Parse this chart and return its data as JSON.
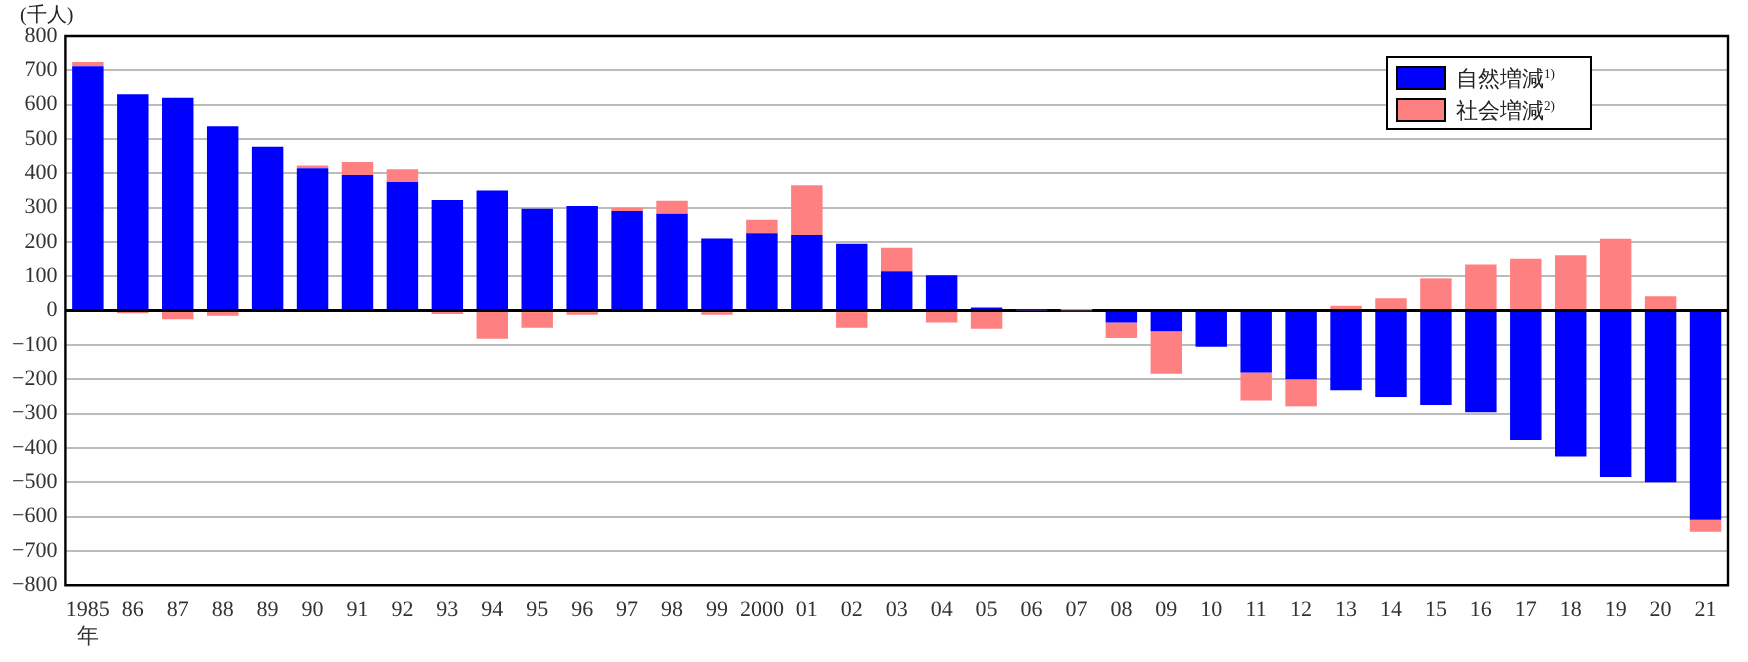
{
  "chart_data": {
    "type": "bar",
    "stacked": true,
    "ylabel": "(千人)",
    "categories": [
      "1985\n年",
      "86",
      "87",
      "88",
      "89",
      "90",
      "91",
      "92",
      "93",
      "94",
      "95",
      "96",
      "97",
      "98",
      "99",
      "2000",
      "01",
      "02",
      "03",
      "04",
      "05",
      "06",
      "07",
      "08",
      "09",
      "10",
      "11",
      "12",
      "13",
      "14",
      "15",
      "16",
      "17",
      "18",
      "19",
      "20",
      "21"
    ],
    "series": [
      {
        "name": "自然増減$^{1)}$",
        "color": "#0000ff",
        "values": [
          712,
          630,
          620,
          537,
          477,
          415,
          395,
          375,
          322,
          350,
          297,
          305,
          290,
          282,
          210,
          225,
          220,
          195,
          115,
          103,
          9,
          1,
          -1,
          -35,
          -60,
          -105,
          -180,
          -200,
          -232,
          -252,
          -275,
          -296,
          -377,
          -425,
          -485,
          -500,
          -609
        ]
      },
      {
        "name": "社会増減$^{2)}$",
        "color": "#ff8080",
        "values": [
          12,
          -8,
          -25,
          -15,
          null,
          8,
          38,
          37,
          -10,
          -82,
          -50,
          -12,
          10,
          38,
          -12,
          40,
          145,
          -50,
          68,
          -35,
          -53,
          1,
          1,
          -45,
          -124,
          0,
          -82,
          -79,
          14,
          36,
          94,
          134,
          151,
          161,
          209,
          42,
          -35
        ]
      }
    ],
    "ylim": [
      -800,
      800
    ],
    "yticks": [
      -800,
      -700,
      -600,
      -500,
      -400,
      -300,
      -200,
      -100,
      0,
      100,
      200,
      300,
      400,
      500,
      600,
      700,
      800
    ],
    "grid": "y",
    "legend": "top right"
  }
}
